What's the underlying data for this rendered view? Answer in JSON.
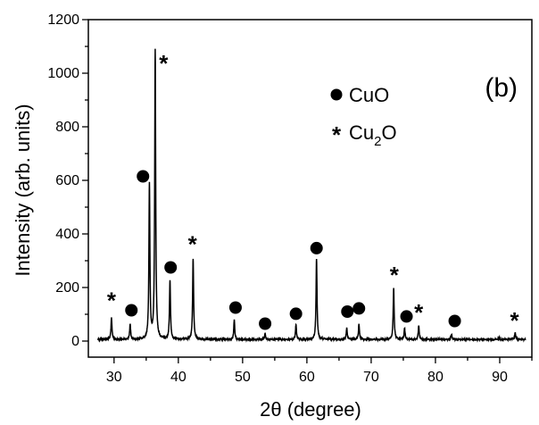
{
  "chart_data": {
    "type": "line",
    "panel_label": "(b)",
    "xlabel": "2θ (degree)",
    "ylabel": "Intensity (arb. units)",
    "xlim": [
      26,
      95
    ],
    "ylim": [
      -60,
      1200
    ],
    "xticks": [
      30,
      40,
      50,
      60,
      70,
      80,
      90
    ],
    "yticks": [
      0,
      200,
      400,
      600,
      800,
      1000,
      1200
    ],
    "grid": false,
    "legend_position": "top-right",
    "legend": [
      {
        "marker": "circle",
        "label": "CuO"
      },
      {
        "marker": "star",
        "label_main": "Cu",
        "label_sub": "2",
        "label_tail": "O"
      }
    ],
    "series": [
      {
        "baseline": 3,
        "peaks": [
          {
            "x": 29.6,
            "y": 83
          },
          {
            "x": 32.5,
            "y": 60
          },
          {
            "x": 35.5,
            "y": 578
          },
          {
            "x": 36.4,
            "y": 1085
          },
          {
            "x": 38.7,
            "y": 225
          },
          {
            "x": 42.3,
            "y": 305
          },
          {
            "x": 48.7,
            "y": 75
          },
          {
            "x": 53.5,
            "y": 25
          },
          {
            "x": 58.3,
            "y": 58
          },
          {
            "x": 61.5,
            "y": 305
          },
          {
            "x": 66.2,
            "y": 45
          },
          {
            "x": 68.1,
            "y": 60
          },
          {
            "x": 73.5,
            "y": 195
          },
          {
            "x": 75.2,
            "y": 45
          },
          {
            "x": 77.4,
            "y": 55
          },
          {
            "x": 82.5,
            "y": 22
          },
          {
            "x": 89.9,
            "y": 10
          },
          {
            "x": 92.4,
            "y": 28
          }
        ]
      }
    ],
    "annotations": [
      {
        "marker": "star",
        "x": 29.6,
        "y": 155
      },
      {
        "marker": "circle",
        "x": 32.7,
        "y": 115
      },
      {
        "marker": "circle",
        "x": 34.5,
        "y": 615
      },
      {
        "marker": "star",
        "x": 37.7,
        "y": 1040
      },
      {
        "marker": "circle",
        "x": 38.8,
        "y": 275
      },
      {
        "marker": "star",
        "x": 42.2,
        "y": 365
      },
      {
        "marker": "circle",
        "x": 48.9,
        "y": 125
      },
      {
        "marker": "circle",
        "x": 53.5,
        "y": 65
      },
      {
        "marker": "circle",
        "x": 58.3,
        "y": 102
      },
      {
        "marker": "circle",
        "x": 61.5,
        "y": 347
      },
      {
        "marker": "circle",
        "x": 66.3,
        "y": 110
      },
      {
        "marker": "circle",
        "x": 68.1,
        "y": 122
      },
      {
        "marker": "star",
        "x": 73.6,
        "y": 250
      },
      {
        "marker": "circle",
        "x": 75.5,
        "y": 92
      },
      {
        "marker": "star",
        "x": 77.4,
        "y": 110
      },
      {
        "marker": "circle",
        "x": 83.0,
        "y": 75
      },
      {
        "marker": "star",
        "x": 92.3,
        "y": 80
      }
    ]
  }
}
